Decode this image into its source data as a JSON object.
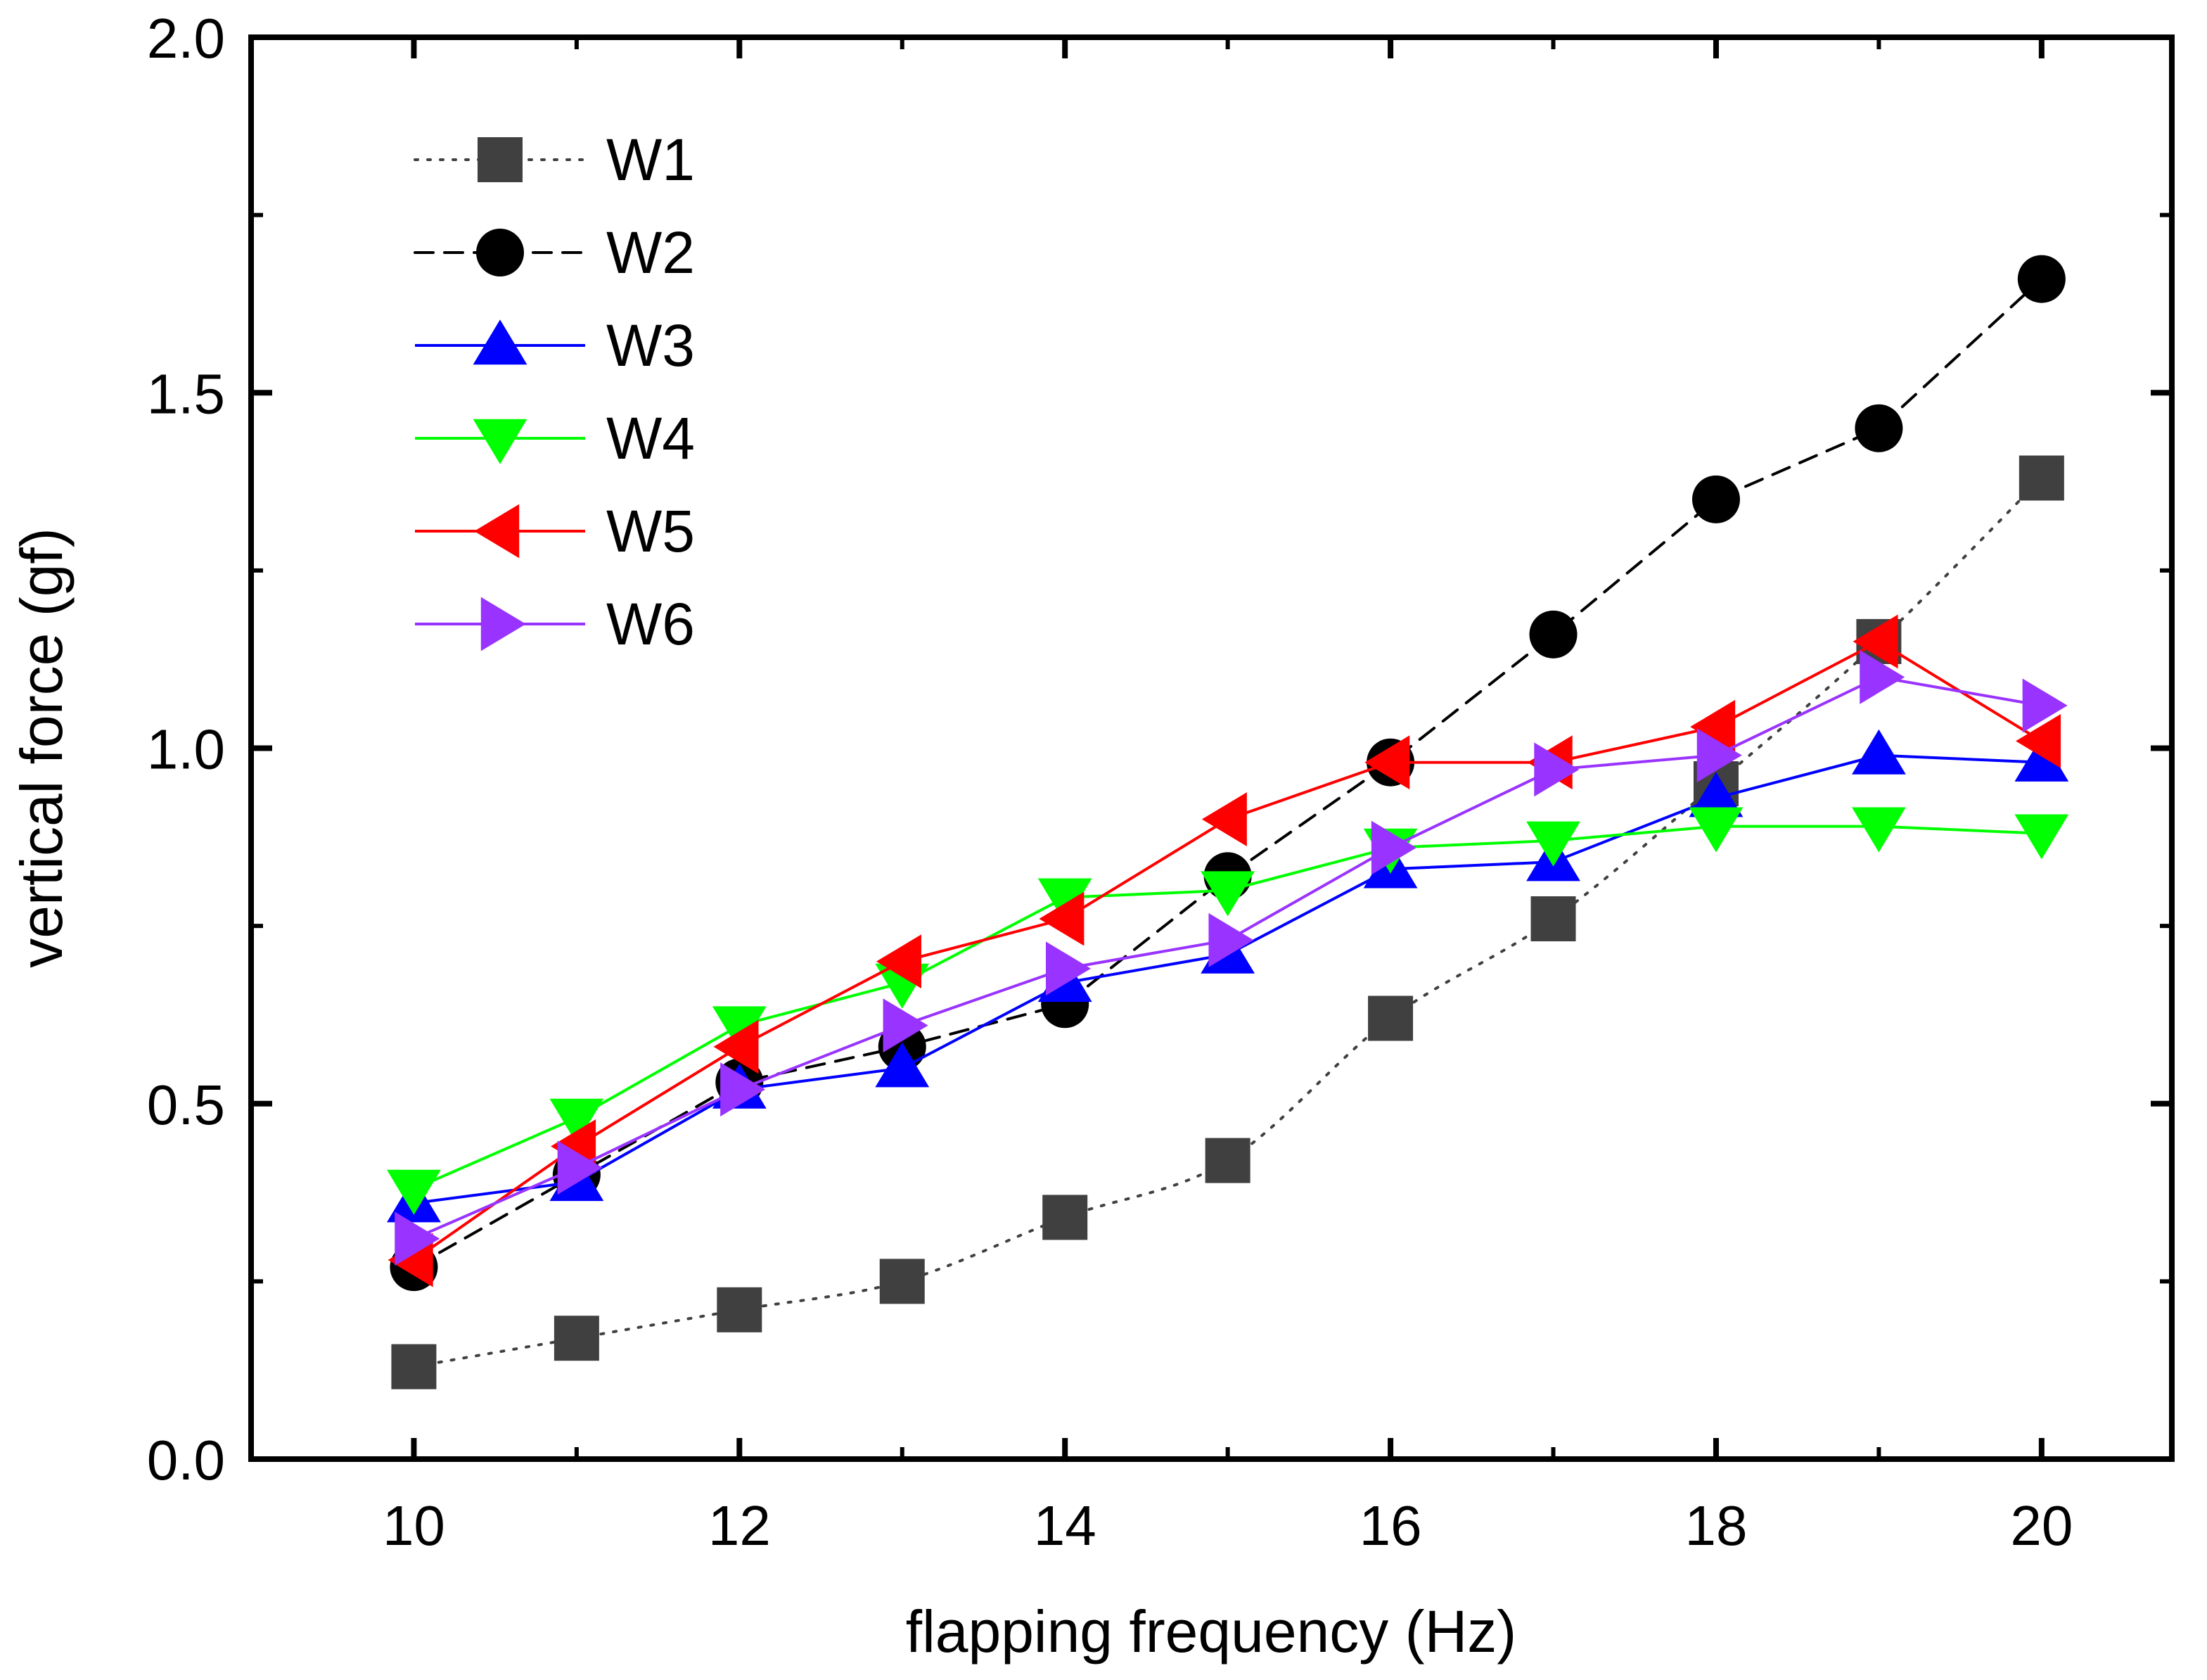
{
  "chart_data": {
    "type": "line",
    "xlabel": "flapping frequency (Hz)",
    "ylabel": "vertical force (gf)",
    "xlim": [
      9,
      20.8
    ],
    "ylim": [
      0,
      2.0
    ],
    "xticks": [
      10,
      12,
      14,
      16,
      18,
      20
    ],
    "xtick_labels": [
      "10",
      "12",
      "14",
      "16",
      "18",
      "20"
    ],
    "yticks": [
      0,
      0.5,
      1.0,
      1.5,
      2.0
    ],
    "ytick_labels": [
      "0.0",
      "0.5",
      "1.0",
      "1.5",
      "2.0"
    ],
    "grid": false,
    "legend_position": "top-left",
    "x": [
      10,
      11,
      12,
      13,
      14,
      15,
      16,
      17,
      18,
      19,
      20
    ],
    "series": [
      {
        "name": "W1",
        "color": "#404040",
        "marker": "square",
        "line": "dotted",
        "smooth": true,
        "values": [
          0.13,
          0.17,
          0.21,
          0.25,
          0.34,
          0.42,
          0.62,
          0.76,
          0.95,
          1.15,
          1.38
        ]
      },
      {
        "name": "W2",
        "color": "#000000",
        "marker": "circle",
        "line": "dashed",
        "smooth": false,
        "values": [
          0.27,
          0.4,
          0.53,
          0.58,
          0.64,
          0.82,
          0.98,
          1.16,
          1.35,
          1.45,
          1.66
        ]
      },
      {
        "name": "W3",
        "color": "#0000ff",
        "marker": "triangle-up",
        "line": "solid",
        "smooth": false,
        "values": [
          0.36,
          0.39,
          0.52,
          0.55,
          0.67,
          0.71,
          0.83,
          0.84,
          0.93,
          0.99,
          0.98
        ]
      },
      {
        "name": "W4",
        "color": "#00ff00",
        "marker": "triangle-down",
        "line": "solid",
        "smooth": false,
        "values": [
          0.38,
          0.48,
          0.61,
          0.67,
          0.79,
          0.8,
          0.86,
          0.87,
          0.89,
          0.89,
          0.88
        ]
      },
      {
        "name": "W5",
        "color": "#ff0000",
        "marker": "triangle-left",
        "line": "solid",
        "smooth": false,
        "values": [
          0.28,
          0.44,
          0.58,
          0.7,
          0.76,
          0.9,
          0.98,
          0.98,
          1.03,
          1.15,
          1.01
        ]
      },
      {
        "name": "W6",
        "color": "#9933ff",
        "marker": "triangle-right",
        "line": "solid",
        "smooth": false,
        "values": [
          0.31,
          0.41,
          0.52,
          0.61,
          0.69,
          0.73,
          0.86,
          0.97,
          0.99,
          1.1,
          1.06
        ]
      }
    ]
  }
}
